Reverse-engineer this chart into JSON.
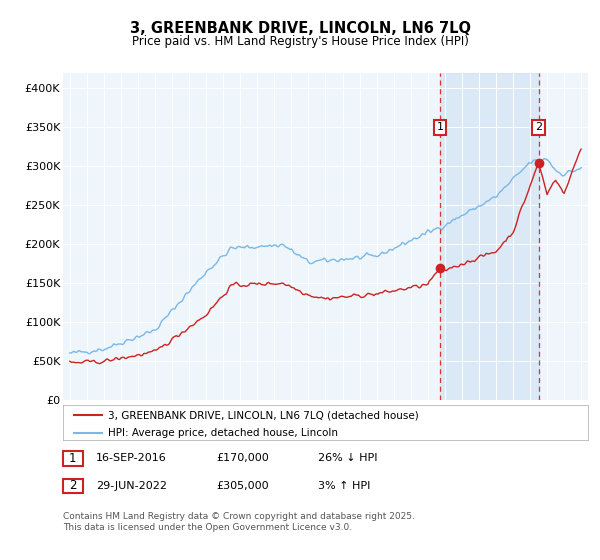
{
  "title": "3, GREENBANK DRIVE, LINCOLN, LN6 7LQ",
  "subtitle": "Price paid vs. HM Land Registry's House Price Index (HPI)",
  "ylim": [
    0,
    420000
  ],
  "yticks": [
    0,
    50000,
    100000,
    150000,
    200000,
    250000,
    300000,
    350000,
    400000
  ],
  "ytick_labels": [
    "£0",
    "£50K",
    "£100K",
    "£150K",
    "£200K",
    "£250K",
    "£300K",
    "£350K",
    "£400K"
  ],
  "hpi_color": "#7ab8e8",
  "price_color": "#cc2222",
  "marker1_x": 2016.72,
  "marker2_x": 2022.5,
  "marker1_price": 170000,
  "marker2_price": 305000,
  "legend_label1": "3, GREENBANK DRIVE, LINCOLN, LN6 7LQ (detached house)",
  "legend_label2": "HPI: Average price, detached house, Lincoln",
  "table_row1": [
    "1",
    "16-SEP-2016",
    "£170,000",
    "26% ↓ HPI"
  ],
  "table_row2": [
    "2",
    "29-JUN-2022",
    "£305,000",
    "3% ↑ HPI"
  ],
  "footer": "Contains HM Land Registry data © Crown copyright and database right 2025.\nThis data is licensed under the Open Government Licence v3.0.",
  "background_color": "#ffffff",
  "plot_bg_color": "#eef5fb",
  "xlim_start": 1994.6,
  "xlim_end": 2025.4
}
